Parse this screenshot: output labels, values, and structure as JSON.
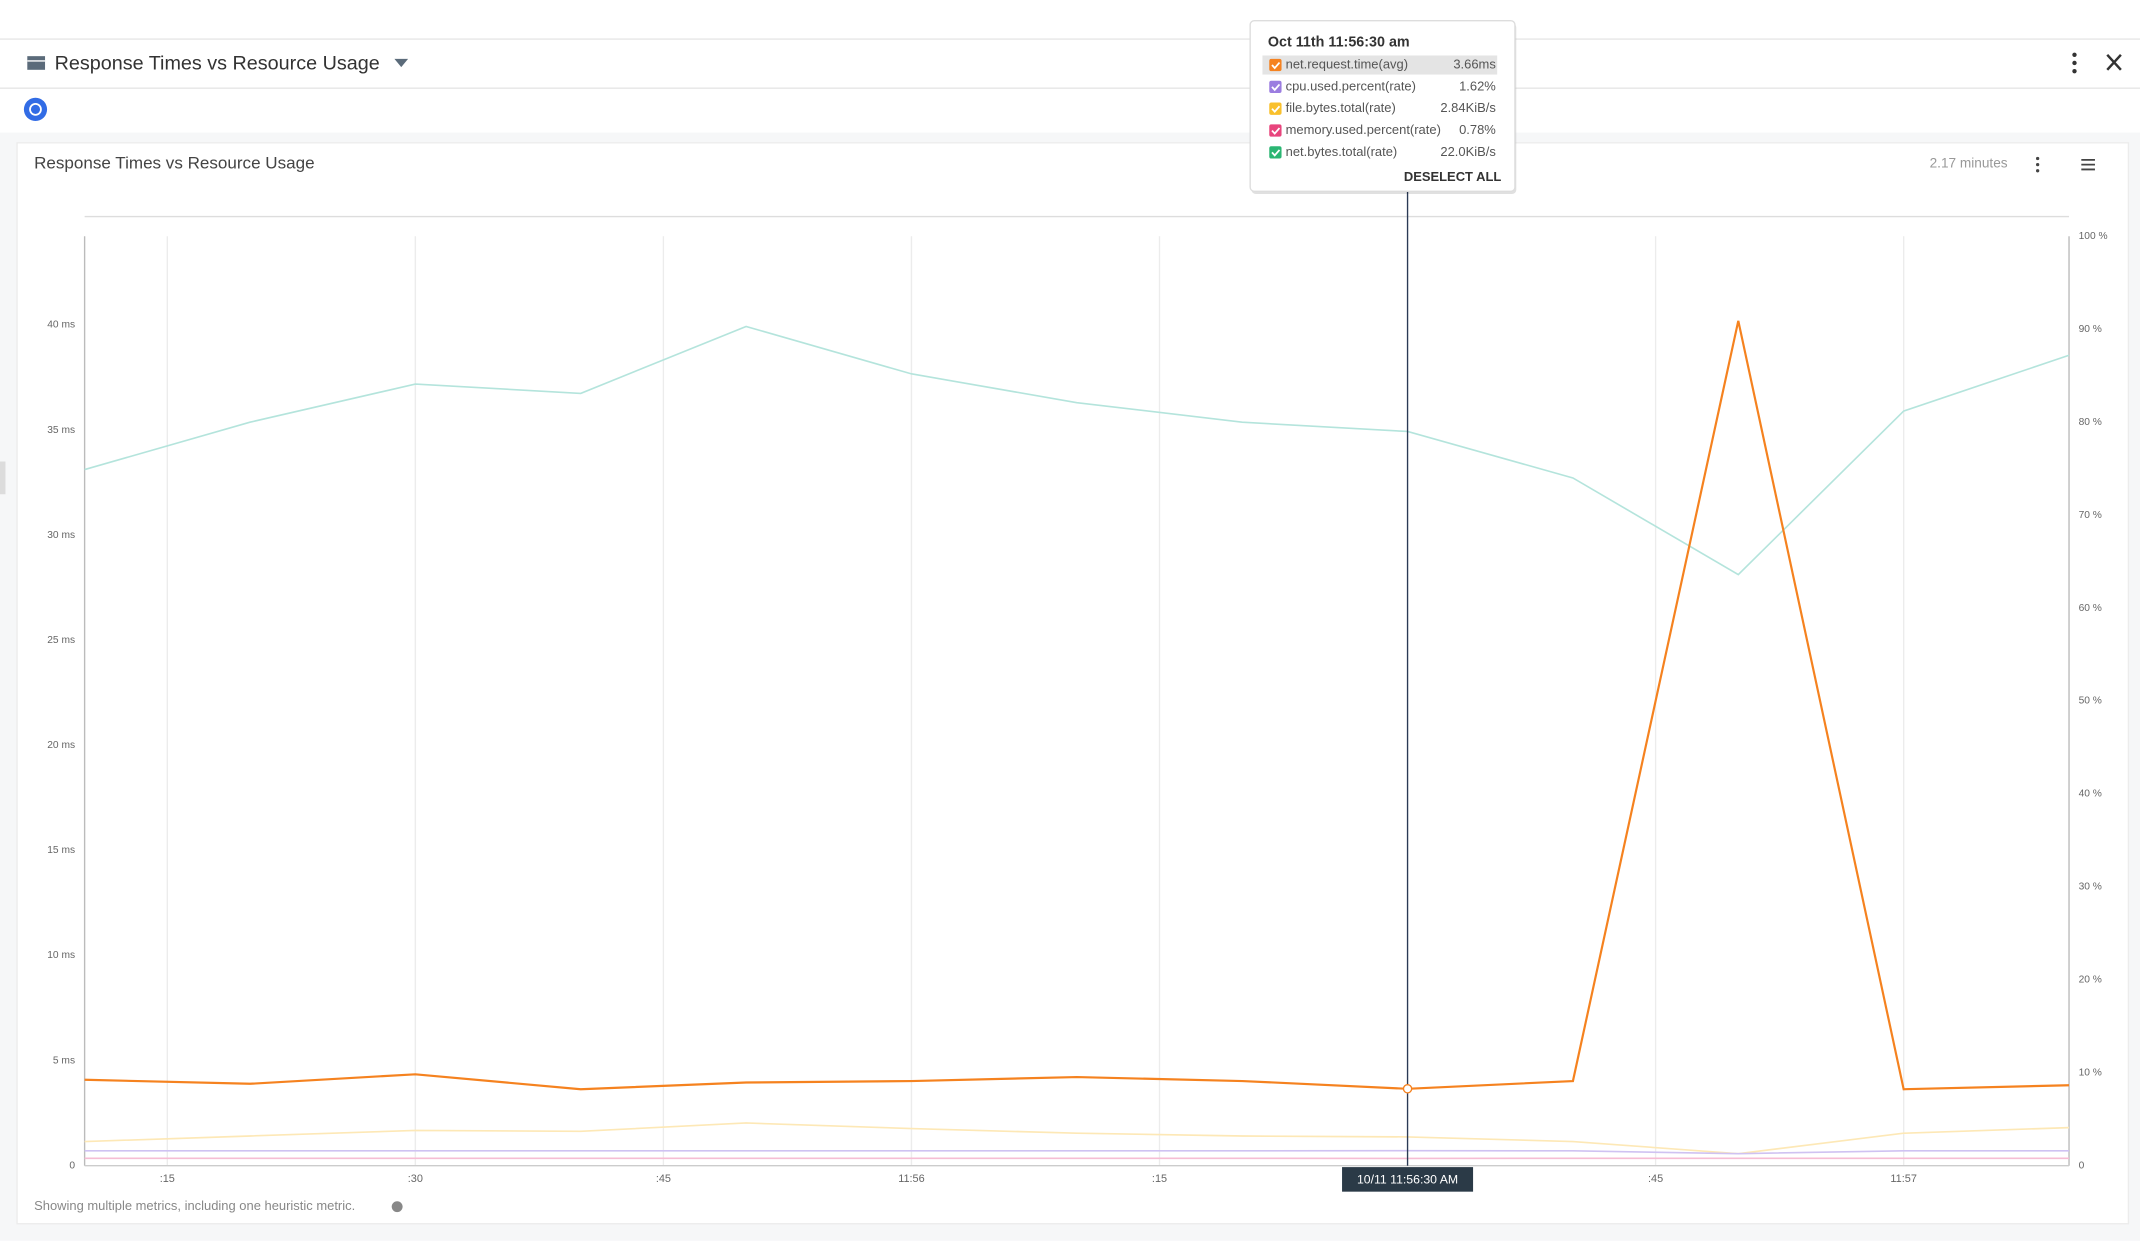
{
  "header": {
    "title": "Response Times vs Resource Usage"
  },
  "chart_data": {
    "type": "line",
    "title": "Response Times vs Resource Usage",
    "duration": "2.17 minutes",
    "x": [
      "11:55:10",
      "11:55:20",
      "11:55:30",
      "11:55:40",
      "11:55:50",
      "11:56:00",
      "11:56:10",
      "11:56:20",
      "11:56:30",
      "11:56:40",
      "11:56:50",
      "11:57:00",
      "11:57:10"
    ],
    "xlim": [
      "11:55:10",
      "11:57:10"
    ],
    "xticks": [
      {
        "value": "11:55:15",
        "label": ":15"
      },
      {
        "value": "11:55:30",
        "label": ":30"
      },
      {
        "value": "11:55:45",
        "label": ":45"
      },
      {
        "value": "11:56:00",
        "label": "11:56"
      },
      {
        "value": "11:56:15",
        "label": ":15"
      },
      {
        "value": "11:56:45",
        "label": ":45"
      },
      {
        "value": "11:57:00",
        "label": "11:57"
      }
    ],
    "ylim": [
      0,
      44.22
    ],
    "yticks": [
      0,
      {
        "value": 5,
        "label": "5 ms"
      },
      {
        "value": 10,
        "label": "10 ms"
      },
      {
        "value": 15,
        "label": "15 ms"
      },
      {
        "value": 20,
        "label": "20 ms"
      },
      {
        "value": 25,
        "label": "25 ms"
      },
      {
        "value": 30,
        "label": "30 ms"
      },
      {
        "value": 35,
        "label": "35 ms"
      },
      {
        "value": 40,
        "label": "40 ms"
      }
    ],
    "y2lim": [
      0,
      100
    ],
    "y2ticks": [
      0,
      {
        "value": 10,
        "label": "10 %"
      },
      {
        "value": 20,
        "label": "20 %"
      },
      {
        "value": 30,
        "label": "30 %"
      },
      {
        "value": 40,
        "label": "40 %"
      },
      {
        "value": 50,
        "label": "50 %"
      },
      {
        "value": 60,
        "label": "60 %"
      },
      {
        "value": 70,
        "label": "70 %"
      },
      {
        "value": 80,
        "label": "80 %"
      },
      {
        "value": 90,
        "label": "90 %"
      },
      {
        "value": 100,
        "label": "100 %"
      }
    ],
    "grid": true,
    "series": [
      {
        "name": "net.request.time(avg)",
        "color": "#f5821f",
        "values": [
          4.09,
          3.9,
          4.35,
          3.64,
          3.96,
          4.03,
          4.22,
          4.03,
          3.66,
          4.03,
          40.2,
          3.64,
          3.83
        ]
      },
      {
        "name": "cpu.used.percent(rate)",
        "color": "#cfc2f2",
        "axis": "y2",
        "values": [
          1.6,
          1.6,
          1.6,
          1.6,
          1.6,
          1.6,
          1.6,
          1.6,
          1.62,
          1.6,
          1.3,
          1.6,
          1.6
        ]
      },
      {
        "name": "file.bytes.total(rate)",
        "color": "#fde8b6",
        "axis": "y2",
        "values": [
          2.6,
          3.2,
          3.8,
          3.7,
          4.6,
          4.0,
          3.5,
          3.2,
          3.1,
          2.6,
          1.3,
          3.5,
          4.1
        ]
      },
      {
        "name": "memory.used.percent(rate)",
        "color": "#f6bdd4",
        "axis": "y2",
        "values": [
          0.8,
          0.8,
          0.8,
          0.8,
          0.8,
          0.8,
          0.8,
          0.8,
          0.78,
          0.8,
          0.8,
          0.8,
          0.8
        ]
      },
      {
        "name": "net.bytes.total(rate)",
        "color": "#b4e4dc",
        "axis": "y2",
        "values": [
          74.9,
          80.0,
          84.1,
          83.1,
          90.3,
          85.2,
          82.1,
          80.0,
          79.0,
          74.0,
          63.6,
          81.2,
          87.2
        ]
      }
    ],
    "cursor": "11:56:30",
    "cursor_label": "10/11 11:56:30 AM",
    "footnote": "Showing multiple metrics, including one heuristic metric."
  },
  "tooltip": {
    "title": "Oct 11th 11:56:30 am",
    "values": [
      "3.66ms",
      "1.62%",
      "2.84KiB/s",
      "0.78%",
      "22.0KiB/s"
    ],
    "check_colors": [
      "#f58220",
      "#9b7de0",
      "#f9c02c",
      "#e8457d",
      "#2bb673"
    ],
    "action": "DESELECT ALL"
  }
}
